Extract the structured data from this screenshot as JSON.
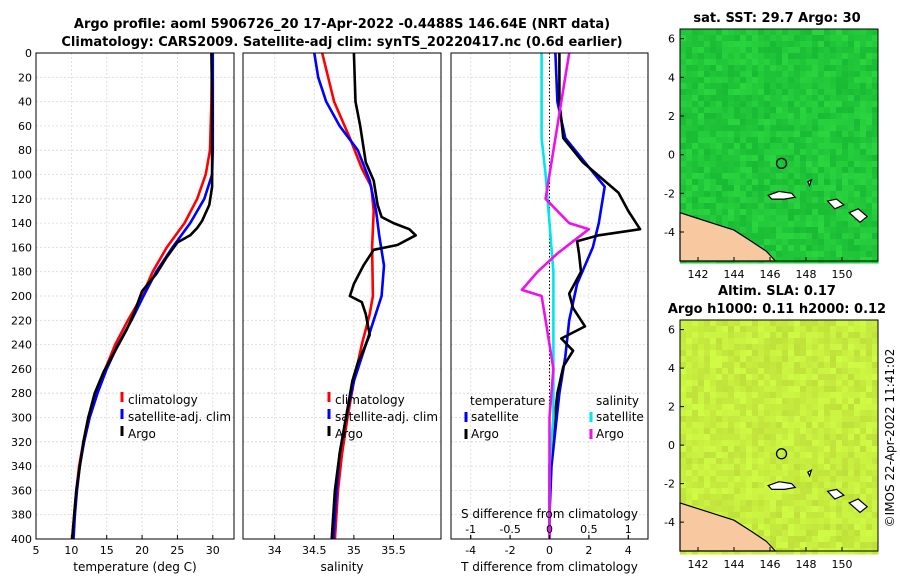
{
  "figure": {
    "title_line1": "Argo profile: aoml 5906726_20 17-Apr-2022 -0.4488S 146.64E (NRT data)",
    "title_line2": "Climatology: CARS2009. Satellite-adj clim: synTS_20220417.nc (0.6d earlier)",
    "credit": "©IMOS 22-Apr-2022 11:41:02"
  },
  "colors": {
    "climatology": "#ff0000",
    "satellite": "#0000ff",
    "argo": "#000000",
    "salinity_satellite": "#00e5ee",
    "salinity_argo": "#ee11ee",
    "land": "#f8c8a0",
    "sst_field": "#22c83a",
    "sla_field": "#c8ee40"
  },
  "chart_data": [
    {
      "type": "line",
      "name": "temperature",
      "xlabel": "temperature (deg C)",
      "ylabel": "",
      "xlim": [
        5,
        33
      ],
      "ylim": [
        400,
        0
      ],
      "xticks": [
        5,
        10,
        15,
        20,
        25,
        30
      ],
      "yticks": [
        0,
        20,
        40,
        60,
        80,
        100,
        120,
        140,
        160,
        180,
        200,
        220,
        240,
        260,
        280,
        300,
        320,
        340,
        360,
        380,
        400
      ],
      "legend": [
        "climatology",
        "satellite-adj. clim",
        "Argo"
      ],
      "series": [
        {
          "name": "climatology",
          "color": "#ff0000",
          "points": [
            [
              29.9,
              0
            ],
            [
              29.8,
              40
            ],
            [
              29.6,
              80
            ],
            [
              29.0,
              100
            ],
            [
              27.8,
              120
            ],
            [
              26.0,
              140
            ],
            [
              23.5,
              160
            ],
            [
              21.5,
              180
            ],
            [
              20.0,
              200
            ],
            [
              18.0,
              220
            ],
            [
              16.2,
              240
            ],
            [
              14.8,
              260
            ],
            [
              13.5,
              280
            ],
            [
              12.4,
              300
            ],
            [
              11.7,
              320
            ],
            [
              11.1,
              340
            ],
            [
              10.7,
              360
            ],
            [
              10.4,
              380
            ],
            [
              10.2,
              400
            ]
          ]
        },
        {
          "name": "satellite-adj. clim",
          "color": "#0000ff",
          "points": [
            [
              30.0,
              0
            ],
            [
              30.0,
              40
            ],
            [
              30.0,
              80
            ],
            [
              29.9,
              100
            ],
            [
              28.8,
              120
            ],
            [
              26.8,
              140
            ],
            [
              24.3,
              160
            ],
            [
              22.0,
              180
            ],
            [
              20.2,
              200
            ],
            [
              18.5,
              220
            ],
            [
              16.6,
              240
            ],
            [
              15.0,
              260
            ],
            [
              13.7,
              280
            ],
            [
              12.6,
              300
            ],
            [
              11.8,
              320
            ],
            [
              11.2,
              340
            ],
            [
              10.8,
              360
            ],
            [
              10.5,
              380
            ],
            [
              10.3,
              400
            ]
          ]
        },
        {
          "name": "Argo",
          "color": "#000000",
          "points": [
            [
              29.8,
              0
            ],
            [
              29.9,
              40
            ],
            [
              29.9,
              80
            ],
            [
              29.9,
              110
            ],
            [
              29.5,
              125
            ],
            [
              28.5,
              138
            ],
            [
              27.8,
              144
            ],
            [
              26.8,
              150
            ],
            [
              25.0,
              156
            ],
            [
              23.5,
              168
            ],
            [
              22.0,
              182
            ],
            [
              20.0,
              196
            ],
            [
              18.8,
              215
            ],
            [
              17.8,
              228
            ],
            [
              16.2,
              245
            ],
            [
              14.6,
              262
            ],
            [
              13.3,
              280
            ],
            [
              12.4,
              300
            ],
            [
              11.7,
              320
            ],
            [
              11.2,
              340
            ],
            [
              10.7,
              360
            ],
            [
              10.4,
              380
            ],
            [
              10.1,
              400
            ]
          ]
        }
      ]
    },
    {
      "type": "line",
      "name": "salinity",
      "xlabel": "salinity",
      "xlim": [
        33.6,
        36.1
      ],
      "ylim": [
        400,
        0
      ],
      "xticks": [
        34,
        34.5,
        35,
        35.5
      ],
      "xticklabels": [
        "34",
        "34.5",
        "35",
        "35.5"
      ],
      "legend": [
        "climatology",
        "satellite-adj. clim",
        "Argo"
      ],
      "series": [
        {
          "name": "climatology",
          "color": "#ff0000",
          "points": [
            [
              34.6,
              0
            ],
            [
              34.75,
              40
            ],
            [
              34.95,
              70
            ],
            [
              35.1,
              95
            ],
            [
              35.22,
              110
            ],
            [
              35.25,
              130
            ],
            [
              35.23,
              160
            ],
            [
              35.24,
              200
            ],
            [
              35.2,
              215
            ],
            [
              35.1,
              240
            ],
            [
              35.0,
              270
            ],
            [
              34.92,
              300
            ],
            [
              34.85,
              330
            ],
            [
              34.8,
              360
            ],
            [
              34.76,
              400
            ]
          ]
        },
        {
          "name": "satellite-adj. clim",
          "color": "#0000ff",
          "points": [
            [
              34.5,
              0
            ],
            [
              34.55,
              20
            ],
            [
              34.65,
              40
            ],
            [
              34.82,
              60
            ],
            [
              35.05,
              80
            ],
            [
              35.2,
              105
            ],
            [
              35.28,
              130
            ],
            [
              35.32,
              150
            ],
            [
              35.38,
              175
            ],
            [
              35.35,
              200
            ],
            [
              35.25,
              220
            ],
            [
              35.15,
              240
            ],
            [
              35.0,
              270
            ],
            [
              34.9,
              300
            ],
            [
              34.82,
              330
            ],
            [
              34.78,
              360
            ],
            [
              34.74,
              400
            ]
          ]
        },
        {
          "name": "Argo",
          "color": "#000000",
          "points": [
            [
              35.0,
              0
            ],
            [
              35.02,
              40
            ],
            [
              35.08,
              60
            ],
            [
              35.15,
              90
            ],
            [
              35.25,
              105
            ],
            [
              35.3,
              125
            ],
            [
              35.35,
              135
            ],
            [
              35.5,
              140
            ],
            [
              35.7,
              145
            ],
            [
              35.78,
              150
            ],
            [
              35.55,
              158
            ],
            [
              35.25,
              162
            ],
            [
              35.12,
              175
            ],
            [
              35.0,
              190
            ],
            [
              34.95,
              200
            ],
            [
              35.1,
              205
            ],
            [
              35.15,
              215
            ],
            [
              35.2,
              232
            ],
            [
              35.1,
              248
            ],
            [
              35.05,
              255
            ],
            [
              34.98,
              270
            ],
            [
              34.9,
              300
            ],
            [
              34.82,
              330
            ],
            [
              34.76,
              360
            ],
            [
              34.72,
              400
            ]
          ]
        }
      ]
    },
    {
      "type": "line",
      "name": "difference",
      "xlabel": "T difference from climatology",
      "top_xlabel": "S difference from climatology",
      "xlim": [
        -5,
        5
      ],
      "top_xlim": [
        -1.25,
        1.25
      ],
      "ylim": [
        400,
        0
      ],
      "xticks": [
        -4,
        -2,
        0,
        2,
        4
      ],
      "top_xticks": [
        -1,
        -0.5,
        0,
        0.5,
        1
      ],
      "top_xticklabels": [
        "-1",
        "-0.5",
        "0",
        "0.5",
        "1"
      ],
      "legend_temperature_title": "temperature",
      "legend_salinity_title": "salinity",
      "legend": [
        "satellite",
        "Argo"
      ],
      "series": [
        {
          "name": "T satellite",
          "color": "#0000ff",
          "axis": "T",
          "points": [
            [
              0.3,
              0
            ],
            [
              0.4,
              40
            ],
            [
              0.8,
              70
            ],
            [
              1.8,
              90
            ],
            [
              2.8,
              110
            ],
            [
              2.5,
              140
            ],
            [
              2.2,
              160
            ],
            [
              1.4,
              190
            ],
            [
              1.0,
              220
            ],
            [
              0.8,
              250
            ],
            [
              0.5,
              280
            ],
            [
              0.3,
              310
            ],
            [
              0.1,
              340
            ],
            [
              0.0,
              380
            ],
            [
              0.0,
              400
            ]
          ]
        },
        {
          "name": "T Argo",
          "color": "#000000",
          "axis": "T",
          "points": [
            [
              0.5,
              0
            ],
            [
              0.5,
              40
            ],
            [
              0.7,
              70
            ],
            [
              1.7,
              90
            ],
            [
              3.5,
              115
            ],
            [
              4.0,
              130
            ],
            [
              4.6,
              145
            ],
            [
              2.5,
              150
            ],
            [
              1.4,
              155
            ],
            [
              1.5,
              165
            ],
            [
              1.6,
              180
            ],
            [
              1.0,
              198
            ],
            [
              1.2,
              210
            ],
            [
              1.8,
              225
            ],
            [
              0.6,
              235
            ],
            [
              1.2,
              245
            ],
            [
              0.7,
              258
            ],
            [
              0.4,
              280
            ],
            [
              0.2,
              310
            ],
            [
              0.0,
              340
            ],
            [
              0.0,
              380
            ],
            [
              0.0,
              400
            ]
          ]
        },
        {
          "name": "S satellite",
          "color": "#00e5ee",
          "axis": "S",
          "points": [
            [
              -0.1,
              0
            ],
            [
              -0.1,
              40
            ],
            [
              -0.1,
              70
            ],
            [
              -0.05,
              100
            ],
            [
              0.0,
              140
            ],
            [
              0.05,
              180
            ],
            [
              0.05,
              220
            ],
            [
              0.05,
              260
            ],
            [
              0.05,
              300
            ],
            [
              0.0,
              340
            ],
            [
              0.0,
              400
            ]
          ]
        },
        {
          "name": "S Argo",
          "color": "#ee11ee",
          "axis": "S",
          "points": [
            [
              0.25,
              0
            ],
            [
              0.15,
              40
            ],
            [
              0.1,
              60
            ],
            [
              0.0,
              100
            ],
            [
              -0.05,
              120
            ],
            [
              0.25,
              140
            ],
            [
              0.5,
              145
            ],
            [
              0.3,
              155
            ],
            [
              0.1,
              165
            ],
            [
              -0.15,
              180
            ],
            [
              -0.35,
              195
            ],
            [
              -0.1,
              200
            ],
            [
              -0.05,
              220
            ],
            [
              0.0,
              240
            ],
            [
              0.05,
              260
            ],
            [
              0.0,
              300
            ],
            [
              0.0,
              340
            ],
            [
              0.0,
              400
            ]
          ]
        }
      ]
    },
    {
      "type": "heatmap",
      "name": "sst_map",
      "title": "sat. SST: 29.7  Argo: 30",
      "xticks": [
        142,
        144,
        146,
        148,
        150
      ],
      "yticks": [
        6,
        4,
        2,
        0,
        -2,
        -4
      ],
      "xlim": [
        141,
        152
      ],
      "ylim": [
        -5.5,
        6.5
      ],
      "argo_position": [
        146.64,
        -0.4488
      ],
      "color_field": "#22c83a"
    },
    {
      "type": "heatmap",
      "name": "sla_map",
      "title_line1": "Altim. SLA: 0.17",
      "title_line2": "Argo h1000: 0.11 h2000: 0.12",
      "xticks": [
        142,
        144,
        146,
        148,
        150
      ],
      "yticks": [
        6,
        4,
        2,
        0,
        -2,
        -4
      ],
      "xlim": [
        141,
        152
      ],
      "ylim": [
        -5.5,
        6.5
      ],
      "argo_position": [
        146.64,
        -0.4488
      ],
      "color_field": "#c8ee40"
    }
  ]
}
